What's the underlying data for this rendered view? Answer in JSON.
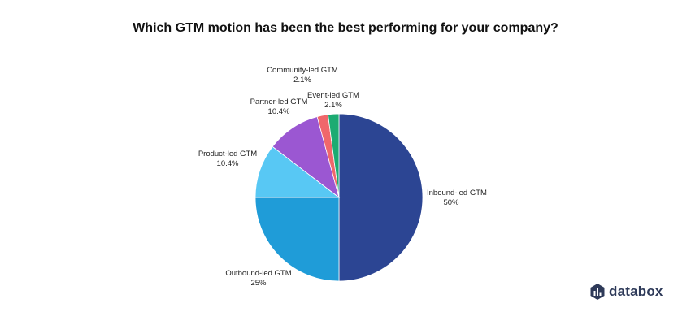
{
  "chart_data": {
    "type": "pie",
    "title": "Which GTM motion has been the best performing for your company?",
    "slices": [
      {
        "label": "Inbound-led GTM",
        "value": 50,
        "value_label": "50%",
        "color": "#2c4593"
      },
      {
        "label": "Outbound-led GTM",
        "value": 25,
        "value_label": "25%",
        "color": "#1f9cd8"
      },
      {
        "label": "Product-led GTM",
        "value": 10.4,
        "value_label": "10.4%",
        "color": "#58c8f4"
      },
      {
        "label": "Partner-led GTM",
        "value": 10.4,
        "value_label": "10.4%",
        "color": "#9b57d2"
      },
      {
        "label": "Community-led GTM",
        "value": 2.1,
        "value_label": "2.1%",
        "color": "#f0676b"
      },
      {
        "label": "Event-led GTM",
        "value": 2.1,
        "value_label": "2.1%",
        "color": "#1cab72"
      }
    ],
    "start_angle": "12 o'clock",
    "direction": "clockwise",
    "legend": "none"
  },
  "brand": {
    "name": "databox",
    "icon": "databox-bar-logo-icon",
    "color": "#2e3a59"
  }
}
